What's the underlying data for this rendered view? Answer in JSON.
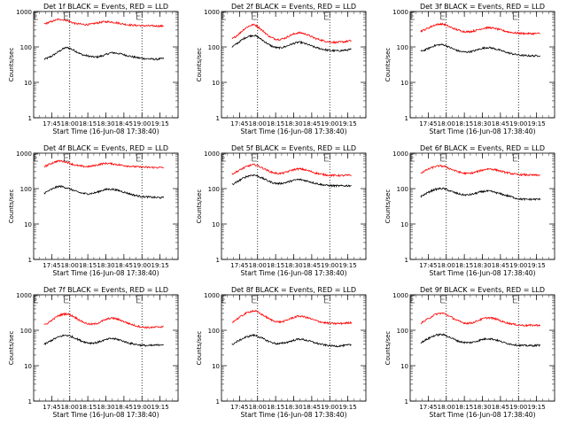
{
  "chart_data": [
    {
      "type": "line",
      "title": "Det 1f BLACK = Events, RED = LLD",
      "xlabel": "Start Time (16-Jun-08 17:38:40)",
      "ylabel": "Counts/sec",
      "yscale": "log",
      "ylim": [
        1,
        1000
      ],
      "xtick_labels": [
        "17:45",
        "18:00",
        "18:15",
        "18:30",
        "18:45",
        "19:00",
        "19:15"
      ],
      "series": [
        {
          "color": "#000000",
          "values": [
            45,
            55,
            75,
            95,
            80,
            62,
            55,
            52,
            58,
            68,
            65,
            58,
            52,
            48,
            46,
            45,
            47
          ]
        },
        {
          "color": "#ff0000",
          "values": [
            450,
            520,
            600,
            560,
            470,
            440,
            430,
            470,
            510,
            505,
            470,
            430,
            410,
            400,
            395,
            390,
            390
          ]
        }
      ]
    },
    {
      "type": "line",
      "title": "Det 2f BLACK = Events, RED = LLD",
      "xlabel": "Start Time (16-Jun-08 17:38:40)",
      "ylabel": "Counts/sec",
      "yscale": "log",
      "ylim": [
        1,
        1000
      ],
      "xtick_labels": [
        "17:45",
        "18:00",
        "18:15",
        "18:30",
        "18:45",
        "19:00",
        "19:15"
      ],
      "series": [
        {
          "color": "#000000",
          "values": [
            100,
            140,
            190,
            210,
            160,
            115,
            95,
            100,
            120,
            135,
            120,
            100,
            88,
            80,
            78,
            80,
            85
          ]
        },
        {
          "color": "#ff0000",
          "values": [
            170,
            240,
            360,
            420,
            300,
            200,
            165,
            175,
            220,
            250,
            225,
            180,
            155,
            140,
            135,
            140,
            150
          ]
        }
      ]
    },
    {
      "type": "line",
      "title": "Det 3f BLACK = Events, RED = LLD",
      "xlabel": "Start Time (16-Jun-08 17:38:40)",
      "ylabel": "Counts/sec",
      "yscale": "log",
      "ylim": [
        1,
        1000
      ],
      "xtick_labels": [
        "17:45",
        "18:00",
        "18:15",
        "18:30",
        "18:45",
        "19:00",
        "19:15"
      ],
      "series": [
        {
          "color": "#000000",
          "values": [
            75,
            90,
            110,
            115,
            95,
            78,
            72,
            76,
            88,
            96,
            88,
            76,
            66,
            60,
            57,
            56,
            57
          ]
        },
        {
          "color": "#ff0000",
          "values": [
            280,
            340,
            420,
            440,
            360,
            300,
            270,
            280,
            320,
            350,
            330,
            290,
            260,
            245,
            240,
            238,
            240
          ]
        }
      ]
    },
    {
      "type": "line",
      "title": "Det 4f BLACK = Events, RED = LLD",
      "xlabel": "Start Time (16-Jun-08 17:38:40)",
      "ylabel": "Counts/sec",
      "yscale": "log",
      "ylim": [
        1,
        1000
      ],
      "xtick_labels": [
        "17:45",
        "18:00",
        "18:15",
        "18:30",
        "18:45",
        "19:00",
        "19:15"
      ],
      "series": [
        {
          "color": "#000000",
          "values": [
            75,
            95,
            115,
            105,
            88,
            75,
            72,
            78,
            92,
            96,
            88,
            76,
            66,
            60,
            58,
            56,
            56
          ]
        },
        {
          "color": "#ff0000",
          "values": [
            420,
            520,
            600,
            560,
            470,
            430,
            420,
            460,
            510,
            505,
            470,
            440,
            420,
            405,
            398,
            395,
            395
          ]
        }
      ]
    },
    {
      "type": "line",
      "title": "Det 5f BLACK = Events, RED = LLD",
      "xlabel": "Start Time (16-Jun-08 17:38:40)",
      "ylabel": "Counts/sec",
      "yscale": "log",
      "ylim": [
        1,
        1000
      ],
      "xtick_labels": [
        "17:45",
        "18:00",
        "18:15",
        "18:30",
        "18:45",
        "19:00",
        "19:15"
      ],
      "series": [
        {
          "color": "#000000",
          "values": [
            130,
            170,
            220,
            240,
            200,
            160,
            140,
            145,
            165,
            180,
            165,
            145,
            130,
            122,
            120,
            120,
            122
          ]
        },
        {
          "color": "#ff0000",
          "values": [
            260,
            330,
            420,
            470,
            390,
            310,
            270,
            280,
            330,
            360,
            330,
            285,
            255,
            240,
            235,
            235,
            238
          ]
        }
      ]
    },
    {
      "type": "line",
      "title": "Det 6f BLACK = Events, RED = LLD",
      "xlabel": "Start Time (16-Jun-08 17:38:40)",
      "ylabel": "Counts/sec",
      "yscale": "log",
      "ylim": [
        1,
        1000
      ],
      "xtick_labels": [
        "17:45",
        "18:00",
        "18:15",
        "18:30",
        "18:45",
        "19:00",
        "19:15"
      ],
      "series": [
        {
          "color": "#000000",
          "values": [
            60,
            78,
            95,
            100,
            85,
            72,
            66,
            70,
            80,
            85,
            78,
            68,
            60,
            52,
            50,
            50,
            50
          ]
        },
        {
          "color": "#ff0000",
          "values": [
            280,
            350,
            420,
            430,
            360,
            300,
            270,
            280,
            320,
            360,
            340,
            300,
            270,
            250,
            245,
            240,
            240
          ]
        }
      ]
    },
    {
      "type": "line",
      "title": "Det 7f BLACK = Events, RED = LLD",
      "xlabel": "Start Time (16-Jun-08 17:38:40)",
      "ylabel": "Counts/sec",
      "yscale": "log",
      "ylim": [
        1,
        1000
      ],
      "xtick_labels": [
        "17:45",
        "18:00",
        "18:15",
        "18:30",
        "18:45",
        "19:00",
        "19:15"
      ],
      "series": [
        {
          "color": "#000000",
          "values": [
            40,
            52,
            65,
            72,
            62,
            50,
            44,
            45,
            52,
            58,
            54,
            46,
            41,
            38,
            37,
            38,
            40
          ]
        },
        {
          "color": "#ff0000",
          "values": [
            140,
            190,
            260,
            290,
            240,
            180,
            150,
            155,
            190,
            220,
            200,
            165,
            140,
            125,
            120,
            122,
            128
          ]
        }
      ]
    },
    {
      "type": "line",
      "title": "Det 8f BLACK = Events, RED = LLD",
      "xlabel": "Start Time (16-Jun-08 17:38:40)",
      "ylabel": "Counts/sec",
      "yscale": "log",
      "ylim": [
        1,
        1000
      ],
      "xtick_labels": [
        "17:45",
        "18:00",
        "18:15",
        "18:30",
        "18:45",
        "19:00",
        "19:15"
      ],
      "series": [
        {
          "color": "#000000",
          "values": [
            40,
            52,
            65,
            72,
            60,
            48,
            42,
            44,
            50,
            56,
            52,
            45,
            40,
            37,
            36,
            37,
            39
          ]
        },
        {
          "color": "#ff0000",
          "values": [
            170,
            230,
            310,
            350,
            280,
            210,
            175,
            180,
            220,
            250,
            230,
            195,
            170,
            158,
            155,
            158,
            165
          ]
        }
      ]
    },
    {
      "type": "line",
      "title": "Det 9f BLACK = Events, RED = LLD",
      "xlabel": "Start Time (16-Jun-08 17:38:40)",
      "ylabel": "Counts/sec",
      "yscale": "log",
      "ylim": [
        1,
        1000
      ],
      "xtick_labels": [
        "17:45",
        "18:00",
        "18:15",
        "18:30",
        "18:45",
        "19:00",
        "19:15"
      ],
      "series": [
        {
          "color": "#000000",
          "values": [
            45,
            58,
            72,
            75,
            62,
            50,
            45,
            46,
            53,
            58,
            54,
            46,
            41,
            38,
            37,
            37,
            38
          ]
        },
        {
          "color": "#ff0000",
          "values": [
            160,
            210,
            280,
            300,
            240,
            185,
            160,
            165,
            200,
            225,
            210,
            175,
            155,
            142,
            138,
            138,
            140
          ]
        }
      ]
    }
  ]
}
